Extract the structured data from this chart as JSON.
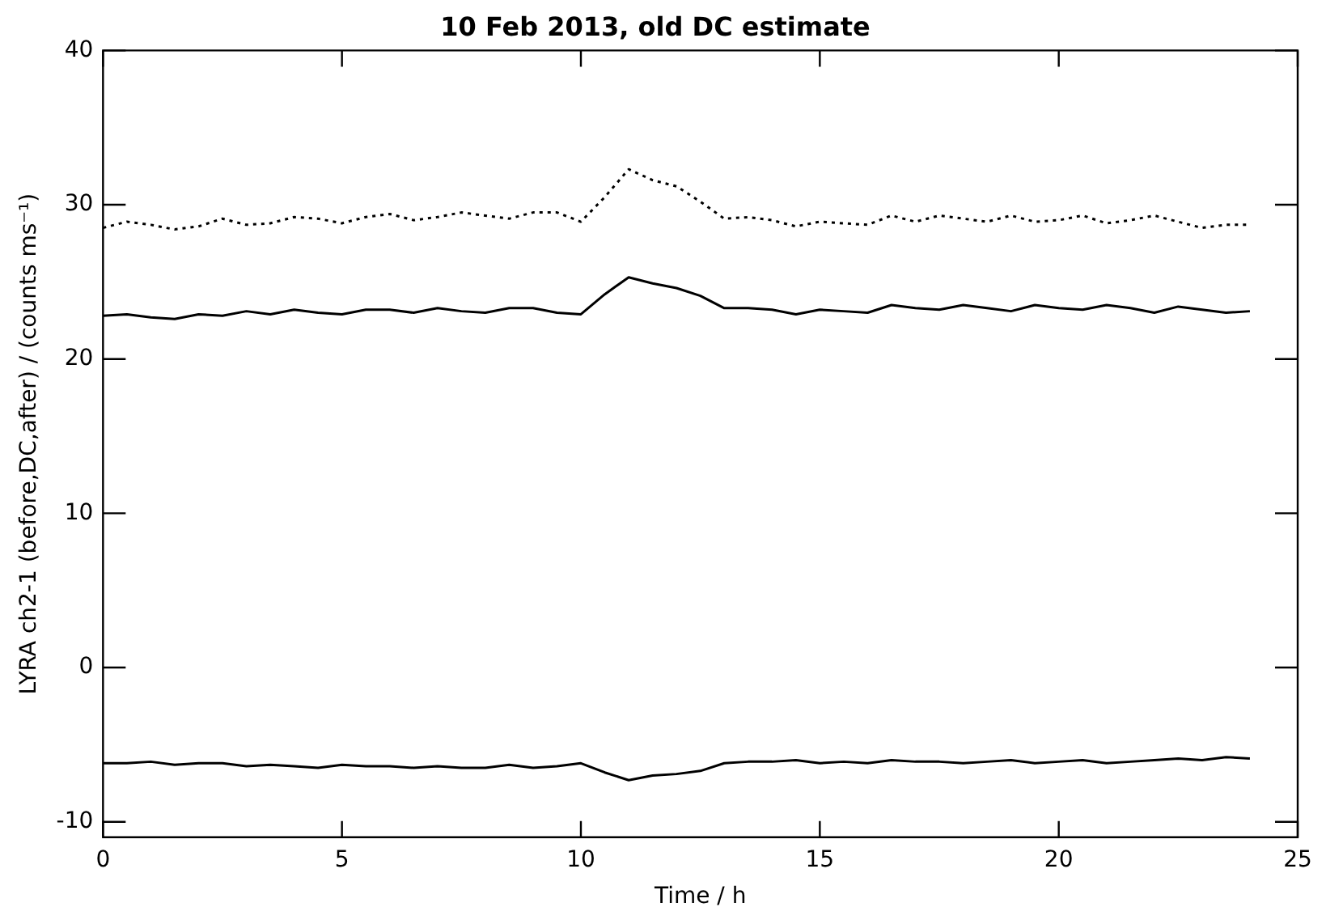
{
  "chart_data": {
    "type": "line",
    "title": "10 Feb 2013, old DC estimate",
    "xlabel": "Time / h",
    "ylabel": "LYRA ch2-1 (before,DC,after) / (counts ms⁻¹)",
    "x": [
      0,
      0.5,
      1,
      1.5,
      2,
      2.5,
      3,
      3.5,
      4,
      4.5,
      5,
      5.5,
      6,
      6.5,
      7,
      7.5,
      8,
      8.5,
      9,
      9.5,
      10,
      10.5,
      11,
      11.5,
      12,
      12.5,
      13,
      13.5,
      14,
      14.5,
      15,
      15.5,
      16,
      16.5,
      17,
      17.5,
      18,
      18.5,
      19,
      19.5,
      20,
      20.5,
      21,
      21.5,
      22,
      22.5,
      23,
      23.5,
      24
    ],
    "series": [
      {
        "color": "#000000",
        "line_style": "dotted",
        "values": [
          28.5,
          28.9,
          28.7,
          28.4,
          28.6,
          29.1,
          28.7,
          28.8,
          29.2,
          29.1,
          28.8,
          29.2,
          29.4,
          29.0,
          29.2,
          29.5,
          29.3,
          29.1,
          29.5,
          29.5,
          28.9,
          30.5,
          32.3,
          31.6,
          31.2,
          30.2,
          29.1,
          29.2,
          29.0,
          28.6,
          28.9,
          28.8,
          28.7,
          29.3,
          28.9,
          29.3,
          29.1,
          28.9,
          29.3,
          28.9,
          29.0,
          29.3,
          28.8,
          29.0,
          29.3,
          28.9,
          28.5,
          28.7,
          28.7
        ]
      },
      {
        "color": "#000000",
        "line_style": "solid",
        "values": [
          22.8,
          22.9,
          22.7,
          22.6,
          22.9,
          22.8,
          23.1,
          22.9,
          23.2,
          23.0,
          22.9,
          23.2,
          23.2,
          23.0,
          23.3,
          23.1,
          23.0,
          23.3,
          23.3,
          23.0,
          22.9,
          24.2,
          25.3,
          24.9,
          24.6,
          24.1,
          23.3,
          23.3,
          23.2,
          22.9,
          23.2,
          23.1,
          23.0,
          23.5,
          23.3,
          23.2,
          23.5,
          23.3,
          23.1,
          23.5,
          23.3,
          23.2,
          23.5,
          23.3,
          23.0,
          23.4,
          23.2,
          23.0,
          23.1
        ]
      },
      {
        "color": "#000000",
        "line_style": "solid",
        "values": [
          -6.2,
          -6.2,
          -6.1,
          -6.3,
          -6.2,
          -6.2,
          -6.4,
          -6.3,
          -6.4,
          -6.5,
          -6.3,
          -6.4,
          -6.4,
          -6.5,
          -6.4,
          -6.5,
          -6.5,
          -6.3,
          -6.5,
          -6.4,
          -6.2,
          -6.8,
          -7.3,
          -7.0,
          -6.9,
          -6.7,
          -6.2,
          -6.1,
          -6.1,
          -6.0,
          -6.2,
          -6.1,
          -6.2,
          -6.0,
          -6.1,
          -6.1,
          -6.2,
          -6.1,
          -6.0,
          -6.2,
          -6.1,
          -6.0,
          -6.2,
          -6.1,
          -6.0,
          -5.9,
          -6.0,
          -5.8,
          -5.9
        ]
      }
    ],
    "xlim": [
      0,
      25
    ],
    "xticks": [
      0,
      5,
      10,
      15,
      20,
      25
    ],
    "ylim": [
      -11,
      40
    ],
    "yticks": [
      -10,
      0,
      10,
      20,
      30,
      40
    ],
    "grid": false,
    "legend": false,
    "marker": "none"
  }
}
